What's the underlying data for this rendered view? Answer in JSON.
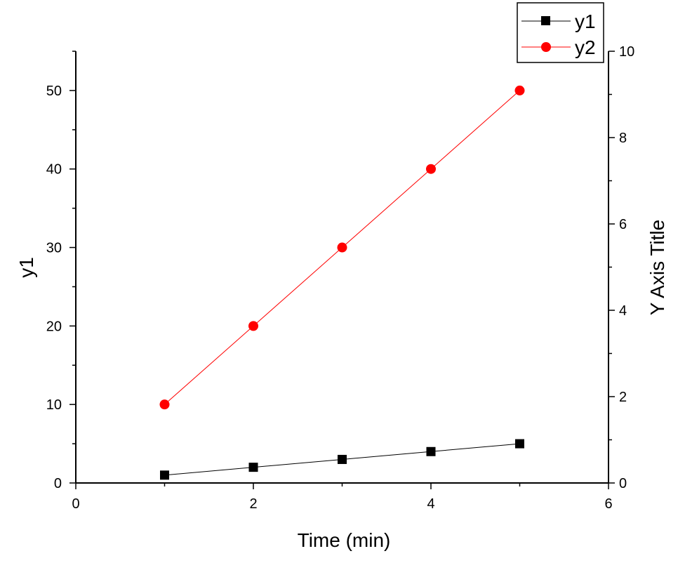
{
  "chart_data": {
    "type": "line",
    "x": [
      1,
      2,
      3,
      4,
      5
    ],
    "xlabel": "Time (min)",
    "ylabel": "y1",
    "y2label": "Y Axis Title",
    "xlim": [
      0,
      6
    ],
    "ylim": [
      0,
      55
    ],
    "y2lim": [
      0,
      10
    ],
    "xticks": [
      "0",
      "2",
      "4",
      "6"
    ],
    "yticks": [
      "0",
      "10",
      "20",
      "30",
      "40",
      "50"
    ],
    "y2ticks": [
      "0",
      "2",
      "4",
      "6",
      "8",
      "10"
    ],
    "grid": false,
    "legend_position": "top-right",
    "series": [
      {
        "name": "y1",
        "values": [
          1,
          2,
          3,
          4,
          5
        ],
        "color": "#000000",
        "marker": "square",
        "axis": "left"
      },
      {
        "name": "y2",
        "values": [
          10,
          20,
          30,
          40,
          50
        ],
        "color": "#ff0000",
        "marker": "circle",
        "axis": "left"
      }
    ]
  }
}
